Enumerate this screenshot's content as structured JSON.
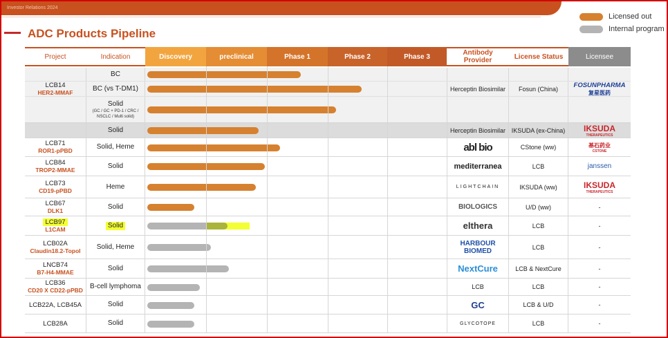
{
  "header": {
    "section_label": "Investor Relations 2024",
    "title": "ADC Products Pipeline"
  },
  "legend": [
    {
      "label": "Licensed out",
      "color": "#d6812f"
    },
    {
      "label": "Internal program",
      "color": "#b4b4b4"
    }
  ],
  "columns": {
    "project": "Project",
    "indication": "Indication",
    "discovery": "Discovery",
    "preclinical": "preclinical",
    "phase1": "Phase 1",
    "phase2": "Phase 2",
    "phase3": "Phase 3",
    "antibody_provider": "Antibody Provider",
    "license_status": "License Status",
    "licensee": "Licensee"
  },
  "colors": {
    "discovery": "#f2a53f",
    "preclinical": "#e48d34",
    "phase1": "#d4742a",
    "phase2": "#c8632a",
    "phase3": "#c25a28",
    "provider_header": "#c8511f",
    "licensee_header": "#8c8c8c",
    "licensed": "#d6812f",
    "internal": "#b4b4b4",
    "highlight_bar": "#a8b53a",
    "highlight_yellow": "#f3ff33"
  },
  "rows": [
    {
      "project": "",
      "project_sub": "",
      "indication": "BC",
      "indication_sub": "",
      "stage_progress": 0.51,
      "status": "licensed",
      "provider": "",
      "license_status": "",
      "licensee": ""
    },
    {
      "project": "LCB14",
      "project_sub": "HER2-MMAF",
      "indication": "BC (vs T-DM1)",
      "indication_sub": "",
      "stage_progress": 0.71,
      "status": "licensed",
      "provider": "Herceptin Biosimilar",
      "license_status": "Fosun (China)",
      "licensee": "FOSUNPHARMA",
      "licensee_sub": "复星医药"
    },
    {
      "project": "",
      "project_sub": "",
      "indication": "Solid",
      "indication_sub": "(GC / GC + PD-1 / CRC / NSCLC / Multi solid)",
      "stage_progress": 0.625,
      "status": "licensed",
      "provider": "",
      "license_status": "",
      "licensee": ""
    },
    {
      "project": "",
      "project_sub": "",
      "indication": "Solid",
      "indication_sub": "",
      "stage_progress": 0.37,
      "status": "licensed",
      "provider": "Herceptin Biosimilar",
      "license_status": "IKSUDA (ex-China)",
      "licensee": "IKSUDA",
      "licensee_sub": "THERAPEUTICS"
    },
    {
      "project": "LCB71",
      "project_sub": "ROR1-pPBD",
      "indication": "Solid, Heme",
      "indication_sub": "",
      "stage_progress": 0.44,
      "status": "licensed",
      "provider": "abl bio",
      "license_status": "CStone (ww)",
      "licensee": "基石药业",
      "licensee_sub": "CSTONE"
    },
    {
      "project": "LCB84",
      "project_sub": "TROP2-MMAE",
      "indication": "Solid",
      "indication_sub": "",
      "stage_progress": 0.39,
      "status": "licensed",
      "provider": "mediterranea",
      "license_status": "LCB",
      "licensee": "janssen"
    },
    {
      "project": "LCB73",
      "project_sub": "CD19-pPBD",
      "indication": "Heme",
      "indication_sub": "",
      "stage_progress": 0.36,
      "status": "licensed",
      "provider": "LIGHTCHAIN",
      "license_status": "IKSUDA (ww)",
      "licensee": "IKSUDA",
      "licensee_sub": "THERAPEUTICS"
    },
    {
      "project": "LCB67",
      "project_sub": "DLK1",
      "indication": "Solid",
      "indication_sub": "",
      "stage_progress": 0.155,
      "status": "licensed",
      "provider": "BIOLOGICS",
      "license_status": "U/D (ww)",
      "licensee": "-"
    },
    {
      "project": "LCB97",
      "project_sub": "L1CAM",
      "indication": "Solid",
      "indication_sub": "",
      "stage_progress": 0.265,
      "status": "internal",
      "highlighted": true,
      "provider": "elthera",
      "license_status": "LCB",
      "licensee": "-"
    },
    {
      "project": "LCB02A",
      "project_sub": "Claudin18.2-TopoI",
      "indication": "Solid, Heme",
      "indication_sub": "",
      "stage_progress": 0.21,
      "status": "internal",
      "provider": "HARBOUR BIOMED",
      "license_status": "LCB",
      "licensee": "-"
    },
    {
      "project": "LNCB74",
      "project_sub": "B7-H4-MMAE",
      "indication": "Solid",
      "indication_sub": "",
      "stage_progress": 0.27,
      "status": "internal",
      "provider": "NextCure",
      "license_status": "LCB & NextCure",
      "licensee": "-"
    },
    {
      "project": "LCB36",
      "project_sub": "CD20 X CD22-pPBD",
      "indication": "B-cell lymphoma",
      "indication_sub": "",
      "stage_progress": 0.175,
      "status": "internal",
      "provider": "LCB",
      "license_status": "LCB",
      "licensee": "-"
    },
    {
      "project": "LCB22A, LCB45A",
      "project_sub": "",
      "indication": "Solid",
      "indication_sub": "",
      "stage_progress": 0.155,
      "status": "internal",
      "provider": "GC",
      "license_status": "LCB & U/D",
      "licensee": "-"
    },
    {
      "project": "LCB28A",
      "project_sub": "",
      "indication": "Solid",
      "indication_sub": "",
      "stage_progress": 0.155,
      "status": "internal",
      "provider": "GLYCOTOPE",
      "license_status": "LCB",
      "licensee": "-"
    }
  ]
}
